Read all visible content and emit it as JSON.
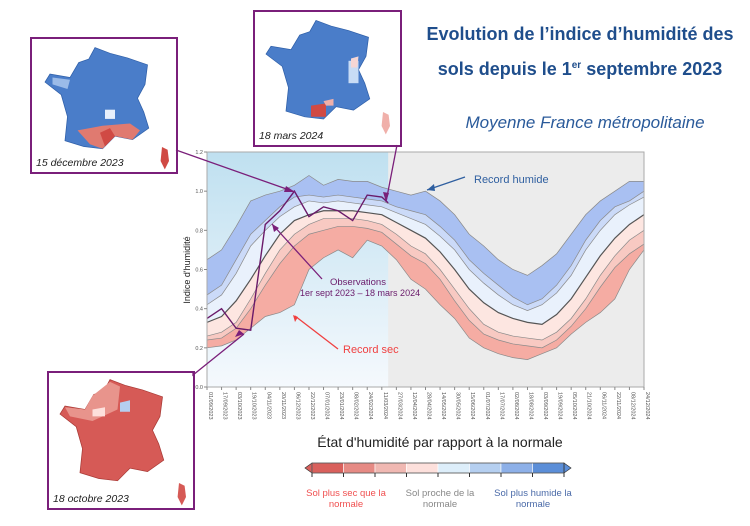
{
  "title_line1": "Evolution de l’indice d’humidité des",
  "title_line2_pre": "sols depuis le 1",
  "title_line2_sup": "er",
  "title_line2_post": " septembre 2023",
  "subtitle": "Moyenne France métropolitaine",
  "maps": {
    "dec": "15 décembre 2023",
    "mar": "18 mars 2024",
    "oct": "18 octobre 2023"
  },
  "colors": {
    "title": "#1f4e8c",
    "connector": "#7a1f7a",
    "record_humide": "#2f5fa0",
    "record_sec": "#f04040",
    "observations": "#6a1a6a"
  },
  "chart_data": {
    "type": "area",
    "ylabel": "Indice d'humidité",
    "xlabel": "",
    "ylim": [
      0,
      1.2
    ],
    "yticks": [
      "0.0",
      "0.2",
      "0.4",
      "0.6",
      "0.8",
      "1.0",
      "1.2"
    ],
    "grid": false,
    "x": [
      "01/09/2023",
      "17/09/2023",
      "03/10/2023",
      "19/10/2023",
      "04/11/2023",
      "20/11/2023",
      "06/12/2023",
      "22/12/2023",
      "07/01/2024",
      "23/01/2024",
      "08/02/2024",
      "24/02/2024",
      "11/03/2024",
      "27/03/2024",
      "12/04/2024",
      "28/04/2024",
      "14/05/2024",
      "30/05/2024",
      "15/06/2024",
      "01/07/2024",
      "17/07/2024",
      "02/08/2024",
      "18/08/2024",
      "03/09/2024",
      "19/09/2024",
      "05/10/2024",
      "21/10/2024",
      "06/11/2024",
      "22/11/2024",
      "08/12/2024",
      "24/12/2024"
    ],
    "series": [
      {
        "key": "record_humide",
        "values": [
          0.65,
          0.7,
          0.82,
          0.95,
          0.98,
          1.0,
          1.03,
          1.08,
          1.03,
          1.06,
          1.05,
          1.05,
          1.02,
          1.0,
          0.98,
          1.0,
          0.95,
          0.88,
          0.78,
          0.72,
          0.65,
          0.6,
          0.57,
          0.62,
          0.68,
          0.78,
          0.88,
          0.95,
          1.0,
          1.05,
          1.05
        ]
      },
      {
        "key": "q90",
        "values": [
          0.47,
          0.52,
          0.65,
          0.78,
          0.85,
          0.92,
          0.97,
          0.98,
          0.97,
          0.98,
          0.97,
          0.96,
          0.95,
          0.92,
          0.9,
          0.88,
          0.82,
          0.75,
          0.65,
          0.58,
          0.52,
          0.46,
          0.42,
          0.45,
          0.52,
          0.62,
          0.75,
          0.85,
          0.92,
          0.95,
          1.0
        ]
      },
      {
        "key": "q75",
        "values": [
          0.42,
          0.47,
          0.58,
          0.72,
          0.8,
          0.87,
          0.92,
          0.95,
          0.94,
          0.95,
          0.94,
          0.93,
          0.92,
          0.89,
          0.86,
          0.83,
          0.77,
          0.7,
          0.6,
          0.53,
          0.47,
          0.42,
          0.39,
          0.42,
          0.48,
          0.57,
          0.7,
          0.8,
          0.88,
          0.93,
          0.97
        ]
      },
      {
        "key": "median",
        "values": [
          0.33,
          0.36,
          0.44,
          0.55,
          0.67,
          0.78,
          0.85,
          0.88,
          0.9,
          0.9,
          0.9,
          0.89,
          0.88,
          0.84,
          0.8,
          0.76,
          0.69,
          0.6,
          0.5,
          0.43,
          0.38,
          0.35,
          0.33,
          0.32,
          0.37,
          0.45,
          0.56,
          0.67,
          0.76,
          0.83,
          0.88
        ]
      },
      {
        "key": "q25",
        "values": [
          0.26,
          0.28,
          0.33,
          0.45,
          0.58,
          0.7,
          0.78,
          0.83,
          0.86,
          0.86,
          0.86,
          0.85,
          0.83,
          0.78,
          0.72,
          0.68,
          0.6,
          0.5,
          0.4,
          0.32,
          0.28,
          0.26,
          0.25,
          0.24,
          0.28,
          0.35,
          0.45,
          0.57,
          0.67,
          0.75,
          0.8
        ]
      },
      {
        "key": "q10",
        "values": [
          0.24,
          0.25,
          0.3,
          0.4,
          0.52,
          0.63,
          0.72,
          0.78,
          0.8,
          0.82,
          0.82,
          0.81,
          0.79,
          0.73,
          0.67,
          0.63,
          0.55,
          0.44,
          0.34,
          0.27,
          0.24,
          0.22,
          0.21,
          0.2,
          0.24,
          0.31,
          0.4,
          0.51,
          0.61,
          0.68,
          0.73
        ]
      },
      {
        "key": "record_sec",
        "values": [
          0.2,
          0.21,
          0.24,
          0.3,
          0.36,
          0.38,
          0.42,
          0.6,
          0.66,
          0.7,
          0.66,
          0.75,
          0.72,
          0.65,
          0.55,
          0.5,
          0.42,
          0.35,
          0.25,
          0.2,
          0.17,
          0.15,
          0.14,
          0.17,
          0.2,
          0.27,
          0.33,
          0.38,
          0.45,
          0.6,
          0.7
        ]
      }
    ],
    "observations": {
      "x": [
        "01/09/2023",
        "17/09/2023",
        "03/10/2023",
        "19/10/2023",
        "04/11/2023",
        "20/11/2023",
        "06/12/2023",
        "22/12/2023",
        "07/01/2024",
        "23/01/2024",
        "08/02/2024",
        "24/02/2024",
        "11/03/2024",
        "18/03/2024"
      ],
      "values": [
        0.35,
        0.4,
        0.3,
        0.29,
        0.83,
        0.9,
        1.0,
        0.87,
        0.92,
        0.9,
        0.85,
        0.98,
        0.97,
        0.94
      ]
    },
    "annotations": {
      "record_humide": "Record humide",
      "record_sec": "Record sec",
      "obs_line1": "Observations",
      "obs_line2": "1er sept 2023 – 18 mars 2024"
    }
  },
  "legend": {
    "title": "État d'humidité par rapport à la normale",
    "colors": [
      "#d9605c",
      "#e68a84",
      "#f0b8b2",
      "#fde0dc",
      "#ddeefa",
      "#b5cff0",
      "#8db0e8",
      "#5b8ed8"
    ],
    "dry": "Sol plus sec que la normale",
    "normal": "Sol proche de la normale",
    "wet": "Sol plus humide la normale"
  }
}
